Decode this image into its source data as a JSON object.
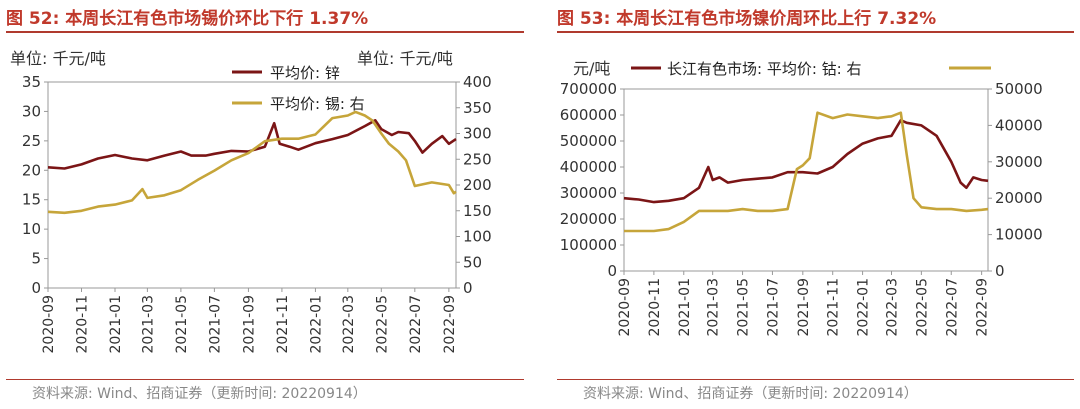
{
  "colors": {
    "title": "#c0392b",
    "rule": "#b03a2e",
    "dark_series": "#7b1516",
    "gold_series": "#c6a53a",
    "source_text": "#888888"
  },
  "chart_data": [
    {
      "type": "line",
      "title": "图 52:  本周长江有色市场锡价环比下行 1.37%",
      "unit_left": "单位:  千元/吨",
      "unit_right": "单位:  千元/吨",
      "source": "资料来源:  Wind、招商证券（更新时间: 20220914）",
      "x_ticks": [
        "2020-09",
        "2020-11",
        "2021-01",
        "2021-03",
        "2021-05",
        "2021-07",
        "2021-09",
        "2021-11",
        "2022-01",
        "2022-03",
        "2022-05",
        "2022-07",
        "2022-09"
      ],
      "x_range": [
        "2020-09-01",
        "2022-09-14"
      ],
      "y_left": {
        "min": 0,
        "max": 35,
        "ticks": [
          "0",
          "5",
          "10",
          "15",
          "20",
          "25",
          "30",
          "35"
        ]
      },
      "y_right": {
        "min": 0,
        "max": 400,
        "ticks": [
          "0",
          "50",
          "100",
          "150",
          "200",
          "250",
          "300",
          "350",
          "400"
        ]
      },
      "legend_placement": "top-right",
      "series": [
        {
          "name": "平均价: 锌",
          "axis": "left",
          "color": "#7b1516",
          "x": [
            "2020-09-01",
            "2020-10-01",
            "2020-11-01",
            "2020-12-01",
            "2021-01-01",
            "2021-02-01",
            "2021-03-01",
            "2021-04-01",
            "2021-05-01",
            "2021-05-20",
            "2021-06-15",
            "2021-07-01",
            "2021-08-01",
            "2021-09-01",
            "2021-10-01",
            "2021-10-18",
            "2021-10-28",
            "2021-11-15",
            "2021-12-01",
            "2022-01-01",
            "2022-02-01",
            "2022-03-01",
            "2022-04-01",
            "2022-04-20",
            "2022-05-01",
            "2022-05-20",
            "2022-06-01",
            "2022-06-20",
            "2022-07-01",
            "2022-07-15",
            "2022-08-01",
            "2022-08-20",
            "2022-09-01",
            "2022-09-14"
          ],
          "y": [
            20.5,
            20.3,
            21.0,
            22.0,
            22.6,
            22.0,
            21.7,
            22.5,
            23.2,
            22.5,
            22.5,
            22.8,
            23.3,
            23.2,
            24.0,
            28.0,
            24.5,
            24.0,
            23.5,
            24.6,
            25.3,
            26.0,
            27.5,
            28.5,
            27.0,
            26.0,
            26.5,
            26.3,
            25.0,
            23.0,
            24.5,
            25.8,
            24.5,
            25.3
          ]
        },
        {
          "name": "平均价: 锡: 右",
          "axis": "right",
          "color": "#c6a53a",
          "x": [
            "2020-09-01",
            "2020-10-01",
            "2020-11-01",
            "2020-12-01",
            "2021-01-01",
            "2021-02-01",
            "2021-02-20",
            "2021-03-01",
            "2021-04-01",
            "2021-05-01",
            "2021-06-01",
            "2021-07-01",
            "2021-08-01",
            "2021-09-01",
            "2021-10-01",
            "2021-11-01",
            "2021-12-01",
            "2022-01-01",
            "2022-02-01",
            "2022-03-01",
            "2022-03-15",
            "2022-04-01",
            "2022-04-15",
            "2022-05-01",
            "2022-05-15",
            "2022-06-01",
            "2022-06-15",
            "2022-07-01",
            "2022-08-01",
            "2022-09-01",
            "2022-09-10",
            "2022-09-14"
          ],
          "y": [
            148,
            146,
            150,
            158,
            162,
            170,
            192,
            175,
            180,
            190,
            210,
            228,
            248,
            262,
            285,
            290,
            290,
            298,
            330,
            335,
            342,
            335,
            325,
            300,
            280,
            265,
            248,
            198,
            205,
            200,
            184,
            187
          ]
        }
      ]
    },
    {
      "type": "line",
      "title": "图 53:  本周长江有色市场镍价周环比上行 7.32%",
      "unit_left": "元/吨",
      "source": "资料来源:  Wind、招商证券（更新时间: 20220914）",
      "x_ticks": [
        "2020-09",
        "2020-11",
        "2021-01",
        "2021-03",
        "2021-05",
        "2021-07",
        "2021-09",
        "2021-11",
        "2022-01",
        "2022-03",
        "2022-05",
        "2022-07",
        "2022-09"
      ],
      "x_range": [
        "2020-09-01",
        "2022-09-14"
      ],
      "y_left": {
        "min": 0,
        "max": 700000,
        "ticks": [
          "0",
          "100000",
          "200000",
          "300000",
          "400000",
          "500000",
          "600000",
          "700000"
        ]
      },
      "y_right": {
        "min": 0,
        "max": 50000,
        "ticks": [
          "0",
          "10000",
          "20000",
          "30000",
          "40000",
          "50000"
        ]
      },
      "legend_placement": "top",
      "series": [
        {
          "name": "长江有色市场: 平均价: 钴: 右",
          "axis": "left",
          "color": "#7b1516",
          "x": [
            "2020-09-01",
            "2020-10-01",
            "2020-11-01",
            "2020-12-01",
            "2021-01-01",
            "2021-02-01",
            "2021-02-20",
            "2021-03-01",
            "2021-03-15",
            "2021-04-01",
            "2021-05-01",
            "2021-06-01",
            "2021-07-01",
            "2021-08-01",
            "2021-09-01",
            "2021-10-01",
            "2021-11-01",
            "2021-12-01",
            "2022-01-01",
            "2022-02-01",
            "2022-03-01",
            "2022-03-20",
            "2022-04-01",
            "2022-05-01",
            "2022-06-01",
            "2022-07-01",
            "2022-07-20",
            "2022-08-01",
            "2022-08-15",
            "2022-09-01",
            "2022-09-14"
          ],
          "y": [
            280000,
            275000,
            265000,
            270000,
            280000,
            320000,
            400000,
            350000,
            360000,
            340000,
            350000,
            355000,
            360000,
            380000,
            380000,
            375000,
            400000,
            450000,
            490000,
            510000,
            520000,
            580000,
            570000,
            560000,
            520000,
            420000,
            340000,
            320000,
            360000,
            350000,
            347000
          ]
        },
        {
          "name": "长江有色市场: 平均价: 钴: 右",
          "axis": "right",
          "color": "#c6a53a",
          "x": [
            "2020-09-01",
            "2020-10-01",
            "2020-11-01",
            "2020-12-01",
            "2021-01-01",
            "2021-02-01",
            "2021-03-01",
            "2021-04-01",
            "2021-05-01",
            "2021-06-01",
            "2021-07-01",
            "2021-08-01",
            "2021-08-20",
            "2021-09-01",
            "2021-09-15",
            "2021-10-01",
            "2021-11-01",
            "2021-12-01",
            "2022-01-01",
            "2022-02-01",
            "2022-03-01",
            "2022-03-20",
            "2022-04-01",
            "2022-04-15",
            "2022-05-01",
            "2022-06-01",
            "2022-07-01",
            "2022-08-01",
            "2022-09-01",
            "2022-09-14"
          ],
          "y": [
            11000,
            11000,
            11000,
            11500,
            13500,
            16500,
            16500,
            16500,
            17000,
            16500,
            16500,
            17000,
            28000,
            29000,
            31000,
            43500,
            42000,
            43000,
            42500,
            42000,
            42500,
            43500,
            32000,
            20000,
            17500,
            17000,
            17000,
            16500,
            16800,
            17000
          ]
        }
      ]
    }
  ]
}
